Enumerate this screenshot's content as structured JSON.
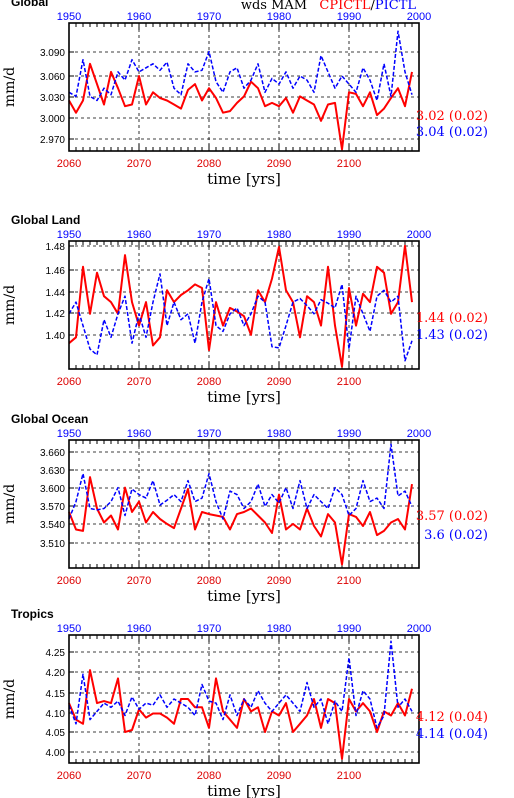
{
  "header": {
    "variable": "wds MAM",
    "legend_red": "CPICTL",
    "legend_sep": "/",
    "legend_blue": "PICTL"
  },
  "colors": {
    "red_series": "#ff0000",
    "blue_series": "#0000ff",
    "bottom_axis": "#dd0000",
    "top_axis": "#0000ff"
  },
  "chart_data": [
    {
      "type": "line",
      "title": "Global",
      "ylabel": "mm/d",
      "xlabel": "time [yrs]",
      "x_bottom_ticks": [
        "2060",
        "2070",
        "2080",
        "2090",
        "2100"
      ],
      "x_top_ticks": [
        "1950",
        "1960",
        "1970",
        "1980",
        "1990",
        "2000"
      ],
      "y_ticks": [
        "3.090",
        "3.060",
        "3.030",
        "3.000",
        "2.970"
      ],
      "ylim": [
        2.953,
        3.11
      ],
      "grid": true,
      "series": [
        {
          "name": "CPICTL",
          "x_axis": "bottom",
          "x_start": 2060,
          "stat": "3.02 (0.02)",
          "values": [
            3.015,
            3.0,
            3.015,
            3.06,
            3.035,
            3.01,
            3.05,
            3.03,
            3.008,
            3.01,
            3.045,
            3.01,
            3.025,
            3.018,
            3.015,
            3.01,
            3.005,
            3.028,
            3.035,
            3.015,
            3.03,
            3.018,
            3.0,
            3.002,
            3.012,
            3.02,
            3.038,
            3.03,
            3.008,
            3.012,
            3.008,
            3.018,
            3.0,
            3.02,
            3.015,
            3.01,
            2.99,
            3.01,
            3.012,
            2.955,
            3.025,
            3.023,
            3.008,
            3.025,
            2.997,
            3.005,
            3.018,
            3.03,
            3.008,
            3.05
          ]
        },
        {
          "name": "PICTL",
          "x_axis": "top",
          "x_start": 1950,
          "stat": "3.04 (0.02)",
          "values": [
            3.025,
            3.02,
            3.065,
            3.02,
            3.015,
            3.03,
            3.022,
            3.05,
            3.04,
            3.065,
            3.05,
            3.055,
            3.06,
            3.052,
            3.062,
            3.03,
            3.022,
            3.06,
            3.05,
            3.052,
            3.075,
            3.038,
            3.025,
            3.05,
            3.055,
            3.03,
            3.04,
            3.06,
            3.025,
            3.042,
            3.035,
            3.05,
            3.03,
            3.045,
            3.04,
            3.025,
            3.07,
            3.05,
            3.03,
            3.045,
            3.035,
            3.025,
            3.055,
            3.04,
            3.015,
            3.06,
            3.02,
            3.1,
            3.05,
            3.022
          ]
        }
      ]
    },
    {
      "type": "line",
      "title": "Global Land",
      "ylabel": "mm/d",
      "xlabel": "time [yrs]",
      "x_bottom_ticks": [
        "2060",
        "2070",
        "2080",
        "2090",
        "2100"
      ],
      "x_top_ticks": [
        "1950",
        "1960",
        "1970",
        "1980",
        "1990",
        "2000"
      ],
      "y_ticks": [
        "1.48",
        "1.46",
        "1.44",
        "1.42",
        "1.40"
      ],
      "ylim": [
        1.383,
        1.492
      ],
      "grid": true,
      "series": [
        {
          "name": "CPICTL",
          "x_axis": "bottom",
          "x_start": 2060,
          "stat": "1.44 (0.02)",
          "values": [
            1.405,
            1.41,
            1.47,
            1.43,
            1.465,
            1.445,
            1.44,
            1.43,
            1.48,
            1.44,
            1.42,
            1.44,
            1.403,
            1.41,
            1.45,
            1.44,
            1.446,
            1.45,
            1.455,
            1.452,
            1.399,
            1.44,
            1.42,
            1.435,
            1.432,
            1.428,
            1.412,
            1.45,
            1.44,
            1.46,
            1.487,
            1.45,
            1.44,
            1.41,
            1.445,
            1.44,
            1.42,
            1.47,
            1.42,
            1.385,
            1.452,
            1.42,
            1.447,
            1.44,
            1.47,
            1.465,
            1.43,
            1.44,
            1.488,
            1.44
          ]
        },
        {
          "name": "PICTL",
          "x_axis": "top",
          "x_start": 1950,
          "stat": "1.43 (0.02)",
          "values": [
            1.43,
            1.44,
            1.42,
            1.4,
            1.395,
            1.425,
            1.41,
            1.43,
            1.445,
            1.405,
            1.43,
            1.41,
            1.44,
            1.464,
            1.42,
            1.44,
            1.425,
            1.43,
            1.405,
            1.44,
            1.46,
            1.42,
            1.415,
            1.43,
            1.435,
            1.42,
            1.43,
            1.445,
            1.44,
            1.402,
            1.401,
            1.42,
            1.44,
            1.443,
            1.437,
            1.43,
            1.442,
            1.439,
            1.435,
            1.455,
            1.4,
            1.445,
            1.43,
            1.415,
            1.445,
            1.45,
            1.44,
            1.445,
            1.39,
            1.407
          ]
        }
      ]
    },
    {
      "type": "line",
      "title": "Global Ocean",
      "ylabel": "mm/d",
      "xlabel": "time [yrs]",
      "x_bottom_ticks": [
        "2060",
        "2070",
        "2080",
        "2090",
        "2100"
      ],
      "x_top_ticks": [
        "1950",
        "1960",
        "1970",
        "1980",
        "1990",
        "2000"
      ],
      "y_ticks": [
        "3.660",
        "3.630",
        "3.600",
        "3.570",
        "3.540",
        "3.510"
      ],
      "ylim": [
        3.495,
        3.678
      ],
      "grid": true,
      "series": [
        {
          "name": "CPICTL",
          "x_axis": "bottom",
          "x_start": 2060,
          "stat": "3.57 (0.02)",
          "values": [
            3.575,
            3.55,
            3.548,
            3.625,
            3.58,
            3.56,
            3.57,
            3.55,
            3.61,
            3.575,
            3.59,
            3.56,
            3.575,
            3.565,
            3.558,
            3.552,
            3.58,
            3.608,
            3.55,
            3.575,
            3.572,
            3.57,
            3.568,
            3.55,
            3.572,
            3.575,
            3.58,
            3.57,
            3.56,
            3.545,
            3.6,
            3.55,
            3.558,
            3.55,
            3.58,
            3.555,
            3.54,
            3.572,
            3.56,
            3.5,
            3.572,
            3.568,
            3.555,
            3.575,
            3.542,
            3.548,
            3.56,
            3.565,
            3.55,
            3.615
          ]
        },
        {
          "name": "PICTL",
          "x_axis": "top",
          "x_start": 1950,
          "stat": "3.6 (0.02)",
          "values": [
            3.565,
            3.59,
            3.63,
            3.58,
            3.578,
            3.58,
            3.59,
            3.61,
            3.57,
            3.608,
            3.6,
            3.595,
            3.62,
            3.585,
            3.592,
            3.6,
            3.59,
            3.62,
            3.59,
            3.595,
            3.63,
            3.59,
            3.565,
            3.605,
            3.6,
            3.58,
            3.59,
            3.615,
            3.583,
            3.6,
            3.588,
            3.61,
            3.58,
            3.62,
            3.58,
            3.6,
            3.59,
            3.58,
            3.61,
            3.6,
            3.57,
            3.58,
            3.62,
            3.59,
            3.595,
            3.58,
            3.672,
            3.598,
            3.605,
            3.583
          ]
        }
      ]
    },
    {
      "type": "line",
      "title": "Tropics",
      "ylabel": "mm/d",
      "xlabel": "time [yrs]",
      "x_bottom_ticks": [
        "2060",
        "2070",
        "2080",
        "2090",
        "2100"
      ],
      "x_top_ticks": [
        "1950",
        "1960",
        "1970",
        "1980",
        "1990",
        "2000"
      ],
      "y_ticks": [
        "4.25",
        "4.20",
        "4.15",
        "4.10",
        "4.05",
        "4.00"
      ],
      "ylim": [
        3.995,
        4.305
      ],
      "grid": true,
      "series": [
        {
          "name": "CPICTL",
          "x_axis": "bottom",
          "x_start": 2060,
          "stat": "4.12 (0.04)",
          "values": [
            4.14,
            4.1,
            4.09,
            4.22,
            4.14,
            4.145,
            4.14,
            4.2,
            4.07,
            4.075,
            4.125,
            4.105,
            4.115,
            4.115,
            4.105,
            4.09,
            4.15,
            4.15,
            4.13,
            4.13,
            4.08,
            4.2,
            4.12,
            4.1,
            4.08,
            4.15,
            4.12,
            4.13,
            4.07,
            4.12,
            4.11,
            4.14,
            4.07,
            4.09,
            4.11,
            4.15,
            4.08,
            4.15,
            4.14,
            4.005,
            4.15,
            4.12,
            4.14,
            4.12,
            4.07,
            4.12,
            4.11,
            4.14,
            4.11,
            4.175
          ]
        },
        {
          "name": "PICTL",
          "x_axis": "top",
          "x_start": 1950,
          "stat": "4.14 (0.04)",
          "values": [
            4.135,
            4.09,
            4.21,
            4.1,
            4.12,
            4.14,
            4.13,
            4.145,
            4.11,
            4.155,
            4.125,
            4.14,
            4.135,
            4.16,
            4.13,
            4.15,
            4.14,
            4.13,
            4.11,
            4.185,
            4.145,
            4.14,
            4.1,
            4.16,
            4.11,
            4.15,
            4.13,
            4.17,
            4.14,
            4.12,
            4.14,
            4.16,
            4.14,
            4.12,
            4.19,
            4.13,
            4.15,
            4.09,
            4.145,
            4.12,
            4.25,
            4.11,
            4.17,
            4.15,
            4.08,
            4.11,
            4.29,
            4.13,
            4.15,
            4.12
          ]
        }
      ]
    }
  ]
}
